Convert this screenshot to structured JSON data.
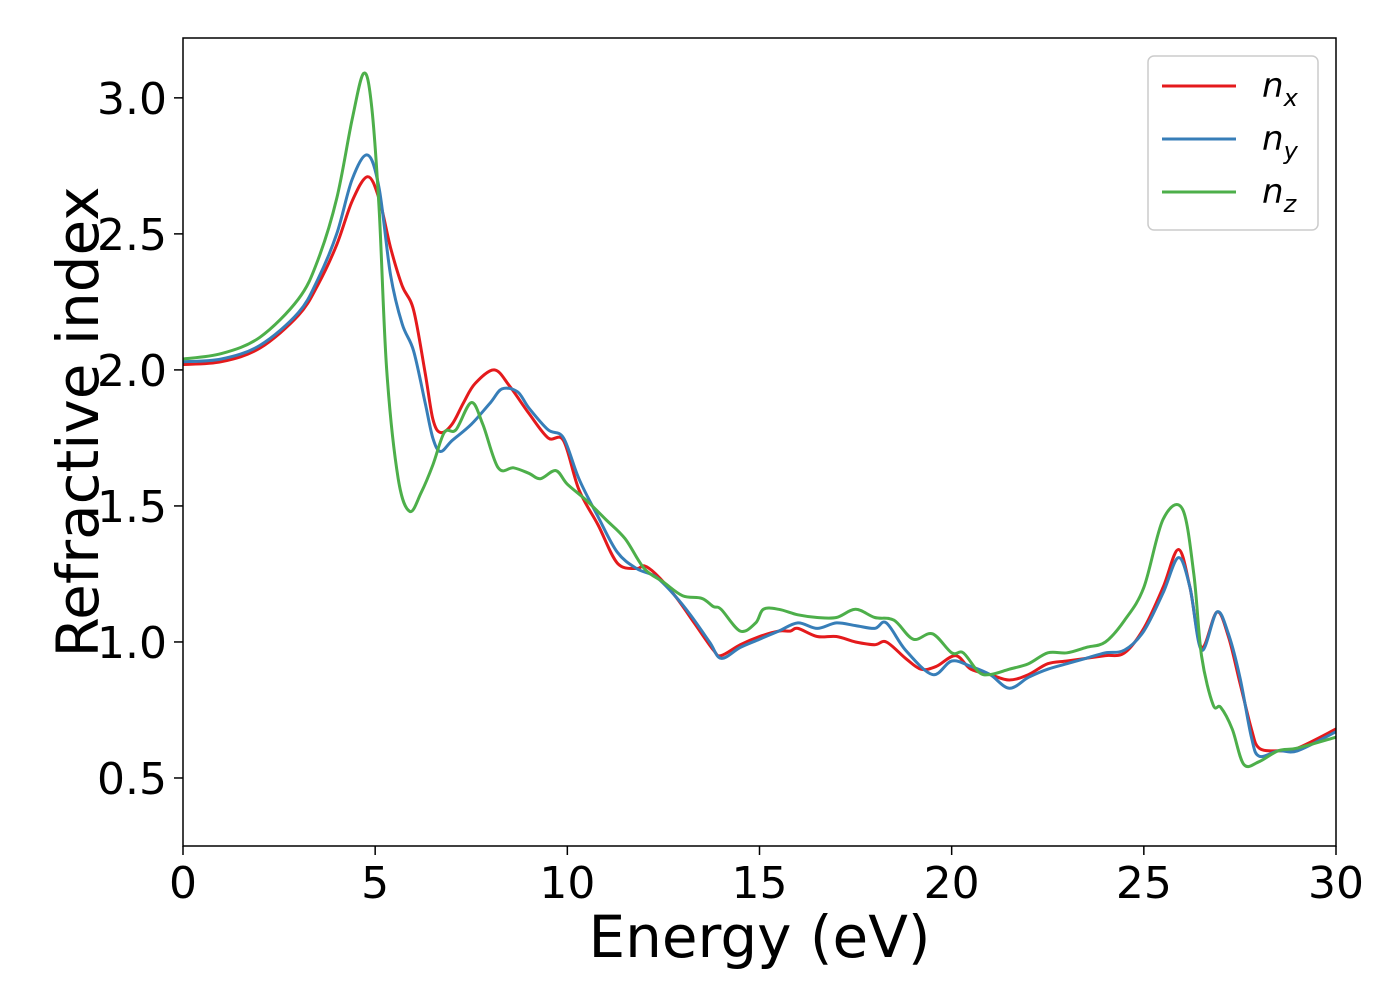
{
  "chart_data": {
    "type": "line",
    "title": "",
    "xlabel": "Energy (eV)",
    "ylabel": "Refractive index",
    "xlim": [
      0,
      30
    ],
    "ylim": [
      0.25,
      3.22
    ],
    "xticks": [
      0,
      5,
      10,
      15,
      20,
      25,
      30
    ],
    "yticks": [
      0.5,
      1.0,
      1.5,
      2.0,
      2.5,
      3.0
    ],
    "xtick_labels": [
      "0",
      "5",
      "10",
      "15",
      "20",
      "25",
      "30"
    ],
    "ytick_labels": [
      "0.5",
      "1.0",
      "1.5",
      "2.0",
      "2.5",
      "3.0"
    ],
    "grid": false,
    "legend_position": "top-right",
    "series": [
      {
        "name": "n",
        "subscript": "x",
        "color": "#e41a1c",
        "points": [
          [
            0,
            2.02
          ],
          [
            1,
            2.03
          ],
          [
            2,
            2.08
          ],
          [
            3,
            2.2
          ],
          [
            3.5,
            2.31
          ],
          [
            4,
            2.46
          ],
          [
            4.4,
            2.62
          ],
          [
            4.8,
            2.71
          ],
          [
            5.1,
            2.63
          ],
          [
            5.4,
            2.45
          ],
          [
            5.7,
            2.31
          ],
          [
            6.0,
            2.22
          ],
          [
            6.3,
            1.99
          ],
          [
            6.5,
            1.82
          ],
          [
            6.7,
            1.77
          ],
          [
            7.0,
            1.8
          ],
          [
            7.3,
            1.88
          ],
          [
            7.6,
            1.95
          ],
          [
            8.1,
            2.0
          ],
          [
            8.5,
            1.94
          ],
          [
            9.0,
            1.84
          ],
          [
            9.5,
            1.75
          ],
          [
            9.9,
            1.74
          ],
          [
            10.3,
            1.56
          ],
          [
            10.8,
            1.43
          ],
          [
            11.3,
            1.29
          ],
          [
            11.8,
            1.27
          ],
          [
            12.0,
            1.28
          ],
          [
            12.3,
            1.25
          ],
          [
            12.8,
            1.17
          ],
          [
            13.3,
            1.07
          ],
          [
            13.8,
            0.97
          ],
          [
            14.0,
            0.95
          ],
          [
            14.5,
            0.99
          ],
          [
            15.0,
            1.02
          ],
          [
            15.5,
            1.04
          ],
          [
            15.8,
            1.04
          ],
          [
            16.0,
            1.05
          ],
          [
            16.5,
            1.02
          ],
          [
            17.0,
            1.02
          ],
          [
            17.5,
            1.0
          ],
          [
            18.0,
            0.99
          ],
          [
            18.3,
            1.0
          ],
          [
            18.8,
            0.94
          ],
          [
            19.2,
            0.9
          ],
          [
            19.6,
            0.91
          ],
          [
            20.1,
            0.95
          ],
          [
            20.5,
            0.9
          ],
          [
            21.0,
            0.88
          ],
          [
            21.5,
            0.86
          ],
          [
            22.0,
            0.88
          ],
          [
            22.5,
            0.92
          ],
          [
            23.0,
            0.93
          ],
          [
            23.5,
            0.94
          ],
          [
            24.0,
            0.95
          ],
          [
            24.5,
            0.96
          ],
          [
            25.0,
            1.05
          ],
          [
            25.5,
            1.2
          ],
          [
            25.9,
            1.34
          ],
          [
            26.2,
            1.2
          ],
          [
            26.5,
            0.98
          ],
          [
            26.9,
            1.11
          ],
          [
            27.2,
            1.02
          ],
          [
            27.5,
            0.85
          ],
          [
            27.8,
            0.68
          ],
          [
            28.0,
            0.61
          ],
          [
            28.5,
            0.6
          ],
          [
            29.0,
            0.61
          ],
          [
            30,
            0.68
          ]
        ]
      },
      {
        "name": "n",
        "subscript": "y",
        "color": "#377eb8",
        "points": [
          [
            0,
            2.03
          ],
          [
            1,
            2.04
          ],
          [
            2,
            2.09
          ],
          [
            3,
            2.21
          ],
          [
            3.5,
            2.33
          ],
          [
            4,
            2.5
          ],
          [
            4.4,
            2.7
          ],
          [
            4.8,
            2.79
          ],
          [
            5.1,
            2.67
          ],
          [
            5.4,
            2.35
          ],
          [
            5.7,
            2.17
          ],
          [
            6.0,
            2.07
          ],
          [
            6.3,
            1.88
          ],
          [
            6.5,
            1.75
          ],
          [
            6.7,
            1.7
          ],
          [
            7.0,
            1.74
          ],
          [
            7.5,
            1.8
          ],
          [
            8.0,
            1.88
          ],
          [
            8.3,
            1.93
          ],
          [
            8.7,
            1.92
          ],
          [
            9.0,
            1.86
          ],
          [
            9.5,
            1.78
          ],
          [
            9.9,
            1.75
          ],
          [
            10.3,
            1.6
          ],
          [
            10.8,
            1.46
          ],
          [
            11.3,
            1.33
          ],
          [
            11.8,
            1.27
          ],
          [
            12.3,
            1.24
          ],
          [
            12.8,
            1.17
          ],
          [
            13.2,
            1.1
          ],
          [
            13.7,
            1.0
          ],
          [
            14.0,
            0.94
          ],
          [
            14.5,
            0.98
          ],
          [
            15.0,
            1.01
          ],
          [
            15.5,
            1.04
          ],
          [
            16.0,
            1.07
          ],
          [
            16.5,
            1.05
          ],
          [
            17.0,
            1.07
          ],
          [
            17.5,
            1.06
          ],
          [
            18.0,
            1.05
          ],
          [
            18.3,
            1.07
          ],
          [
            18.8,
            0.97
          ],
          [
            19.5,
            0.88
          ],
          [
            20.0,
            0.93
          ],
          [
            20.5,
            0.91
          ],
          [
            21.0,
            0.88
          ],
          [
            21.5,
            0.83
          ],
          [
            22.0,
            0.87
          ],
          [
            22.5,
            0.9
          ],
          [
            23.0,
            0.92
          ],
          [
            23.5,
            0.94
          ],
          [
            24.0,
            0.96
          ],
          [
            24.5,
            0.97
          ],
          [
            25.0,
            1.04
          ],
          [
            25.5,
            1.18
          ],
          [
            25.9,
            1.31
          ],
          [
            26.2,
            1.2
          ],
          [
            26.5,
            0.97
          ],
          [
            26.9,
            1.11
          ],
          [
            27.2,
            1.03
          ],
          [
            27.5,
            0.87
          ],
          [
            27.8,
            0.65
          ],
          [
            28.0,
            0.58
          ],
          [
            28.5,
            0.6
          ],
          [
            29.0,
            0.6
          ],
          [
            30,
            0.67
          ]
        ]
      },
      {
        "name": "n",
        "subscript": "z",
        "color": "#4daf4a",
        "points": [
          [
            0,
            2.04
          ],
          [
            1,
            2.06
          ],
          [
            2,
            2.12
          ],
          [
            3,
            2.26
          ],
          [
            3.5,
            2.4
          ],
          [
            4,
            2.63
          ],
          [
            4.4,
            2.92
          ],
          [
            4.7,
            3.09
          ],
          [
            4.9,
            2.98
          ],
          [
            5.1,
            2.6
          ],
          [
            5.3,
            2.0
          ],
          [
            5.6,
            1.6
          ],
          [
            5.9,
            1.48
          ],
          [
            6.2,
            1.55
          ],
          [
            6.5,
            1.65
          ],
          [
            6.8,
            1.77
          ],
          [
            7.1,
            1.78
          ],
          [
            7.5,
            1.88
          ],
          [
            7.8,
            1.8
          ],
          [
            8.2,
            1.64
          ],
          [
            8.6,
            1.64
          ],
          [
            9.0,
            1.62
          ],
          [
            9.3,
            1.6
          ],
          [
            9.7,
            1.63
          ],
          [
            10.0,
            1.58
          ],
          [
            10.5,
            1.52
          ],
          [
            11.0,
            1.45
          ],
          [
            11.5,
            1.38
          ],
          [
            12.0,
            1.27
          ],
          [
            12.5,
            1.22
          ],
          [
            13.0,
            1.17
          ],
          [
            13.5,
            1.16
          ],
          [
            13.8,
            1.13
          ],
          [
            14.0,
            1.12
          ],
          [
            14.5,
            1.04
          ],
          [
            14.9,
            1.07
          ],
          [
            15.1,
            1.12
          ],
          [
            15.5,
            1.12
          ],
          [
            16.0,
            1.1
          ],
          [
            16.5,
            1.09
          ],
          [
            17.0,
            1.09
          ],
          [
            17.5,
            1.12
          ],
          [
            18.0,
            1.09
          ],
          [
            18.5,
            1.08
          ],
          [
            19.0,
            1.01
          ],
          [
            19.5,
            1.03
          ],
          [
            20.0,
            0.96
          ],
          [
            20.3,
            0.96
          ],
          [
            20.7,
            0.89
          ],
          [
            21.0,
            0.88
          ],
          [
            21.5,
            0.9
          ],
          [
            22.0,
            0.92
          ],
          [
            22.5,
            0.96
          ],
          [
            23.0,
            0.96
          ],
          [
            23.5,
            0.98
          ],
          [
            24.0,
            1.0
          ],
          [
            24.5,
            1.08
          ],
          [
            25.0,
            1.2
          ],
          [
            25.5,
            1.45
          ],
          [
            26.0,
            1.49
          ],
          [
            26.3,
            1.25
          ],
          [
            26.5,
            0.95
          ],
          [
            26.8,
            0.77
          ],
          [
            27.0,
            0.76
          ],
          [
            27.3,
            0.68
          ],
          [
            27.6,
            0.55
          ],
          [
            28.0,
            0.56
          ],
          [
            28.5,
            0.6
          ],
          [
            29.0,
            0.61
          ],
          [
            30,
            0.65
          ]
        ]
      }
    ]
  }
}
